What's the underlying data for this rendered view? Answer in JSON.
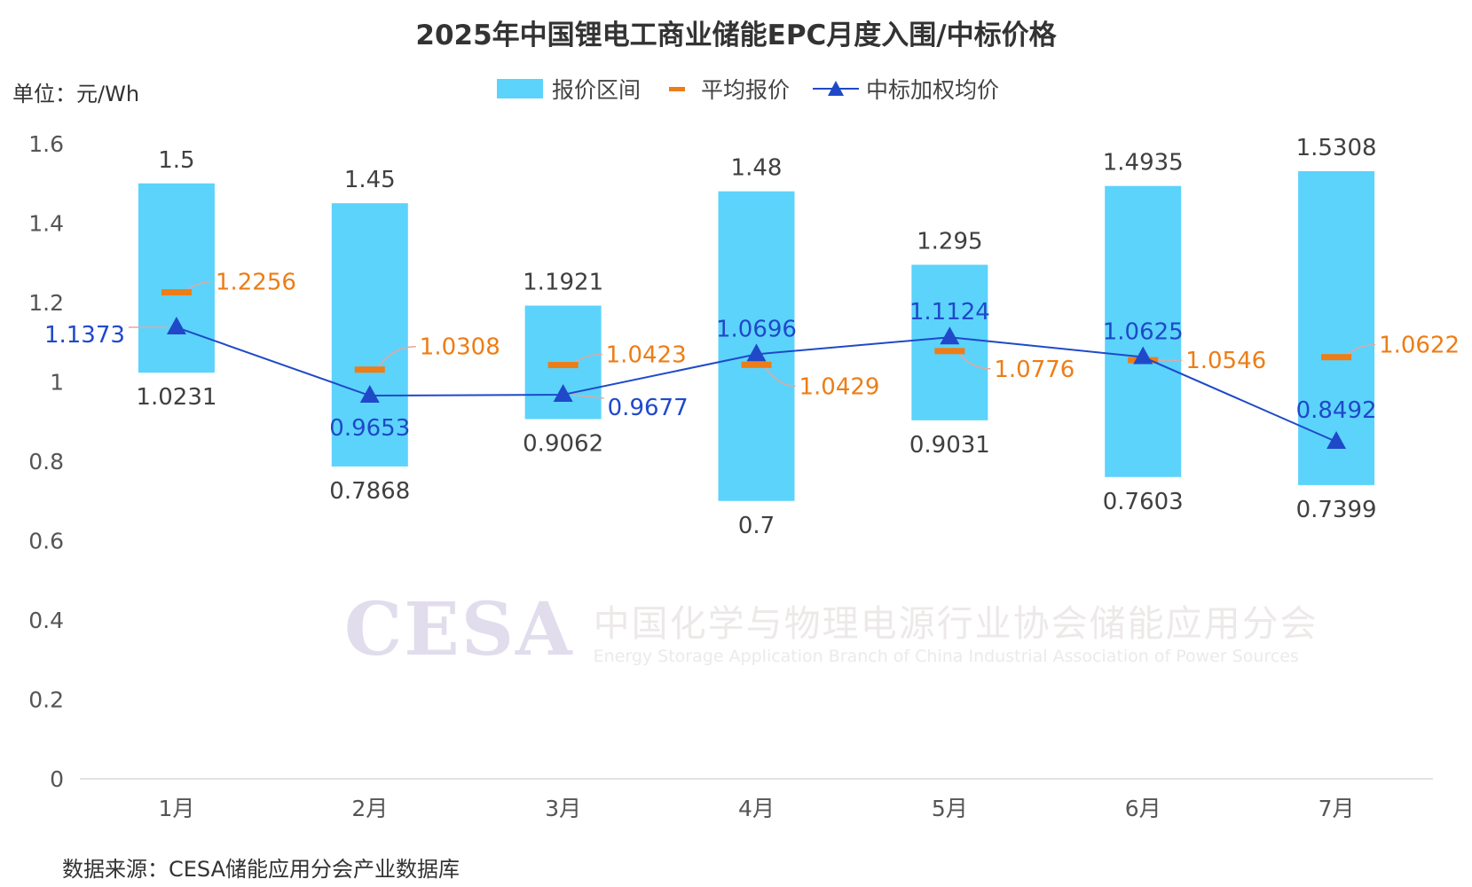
{
  "chart_data": {
    "type": "bar",
    "title": "2025年中国锂电工商业储能EPC月度入围/中标价格",
    "unit_label": "单位：元/Wh",
    "source": "数据来源：CESA储能应用分会产业数据库",
    "categories": [
      "1月",
      "2月",
      "3月",
      "4月",
      "5月",
      "6月",
      "7月"
    ],
    "ylim": [
      0,
      1.6
    ],
    "yticks": [
      "0",
      "0.2",
      "0.4",
      "0.6",
      "0.8",
      "1",
      "1.2",
      "1.4",
      "1.6"
    ],
    "legend_position": "top",
    "series": [
      {
        "name": "报价区间",
        "kind": "range-bar",
        "color": "#5cd3fb",
        "high": [
          1.5,
          1.45,
          1.1921,
          1.48,
          1.295,
          1.4935,
          1.5308
        ],
        "low": [
          1.0231,
          0.7868,
          0.9062,
          0.7,
          0.9031,
          0.7603,
          0.7399
        ],
        "high_labels": [
          "1.5",
          "1.45",
          "1.1921",
          "1.48",
          "1.295",
          "1.4935",
          "1.5308"
        ],
        "low_labels": [
          "1.0231",
          "0.7868",
          "0.9062",
          "0.7",
          "0.9031",
          "0.7603",
          "0.7399"
        ]
      },
      {
        "name": "平均报价",
        "kind": "dash-marker",
        "color": "#ed7d16",
        "values": [
          1.2256,
          1.0308,
          1.0423,
          1.0429,
          1.0776,
          1.0546,
          1.0622
        ],
        "labels": [
          "1.2256",
          "1.0308",
          "1.0423",
          "1.0429",
          "1.0776",
          "1.0546",
          "1.0622"
        ]
      },
      {
        "name": "中标加权均价",
        "kind": "line-triangle",
        "color": "#1f49c9",
        "values": [
          1.1373,
          0.9653,
          0.9677,
          1.0696,
          1.1124,
          1.0625,
          0.8492
        ],
        "labels": [
          "1.1373",
          "0.9653",
          "0.9677",
          "1.0696",
          "1.1124",
          "1.0625",
          "0.8492"
        ]
      }
    ]
  },
  "watermark": {
    "logo": "CESA",
    "name_cn": "中国化学与物理电源行业协会储能应用分会",
    "name_en": "Energy Storage Application Branch of China Industrial Association of Power Sources"
  }
}
